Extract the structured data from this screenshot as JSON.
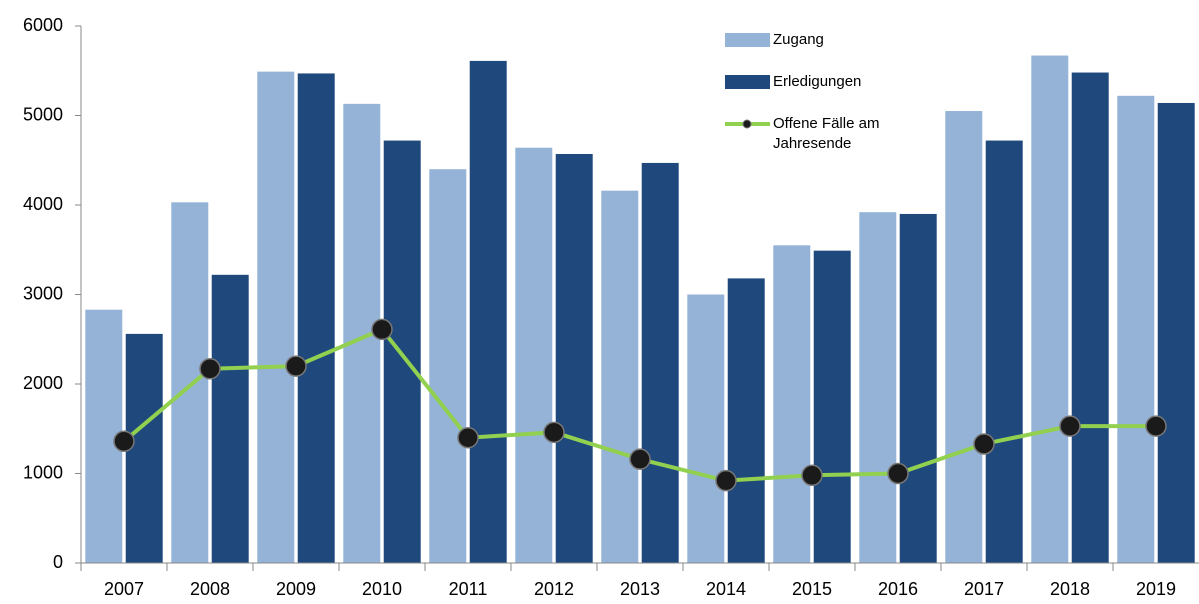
{
  "chart_data": {
    "type": "bar_line",
    "categories": [
      "2007",
      "2008",
      "2009",
      "2010",
      "2011",
      "2012",
      "2013",
      "2014",
      "2015",
      "2016",
      "2017",
      "2018",
      "2019"
    ],
    "series": [
      {
        "name": "Zugang",
        "type": "bar",
        "color": "#95b3d7",
        "values": [
          2830,
          4030,
          5490,
          5130,
          4400,
          4640,
          4160,
          3000,
          3550,
          3920,
          5050,
          5670,
          5220
        ]
      },
      {
        "name": "Erledigungen",
        "type": "bar",
        "color": "#1f497d",
        "values": [
          2560,
          3220,
          5470,
          4720,
          5610,
          4570,
          4470,
          3180,
          3490,
          3900,
          4720,
          5480,
          5140
        ]
      },
      {
        "name": "Offene Fälle am Jahresende",
        "type": "line",
        "color": "#92d050",
        "marker_color": "#1a1a1a",
        "values": [
          1360,
          2170,
          2200,
          2610,
          1400,
          1460,
          1160,
          920,
          980,
          1000,
          1330,
          1530,
          1530
        ]
      }
    ],
    "ylim": [
      0,
      6000
    ],
    "yticks": [
      0,
      1000,
      2000,
      3000,
      4000,
      5000,
      6000
    ],
    "grid": false,
    "legend": "top-right"
  }
}
